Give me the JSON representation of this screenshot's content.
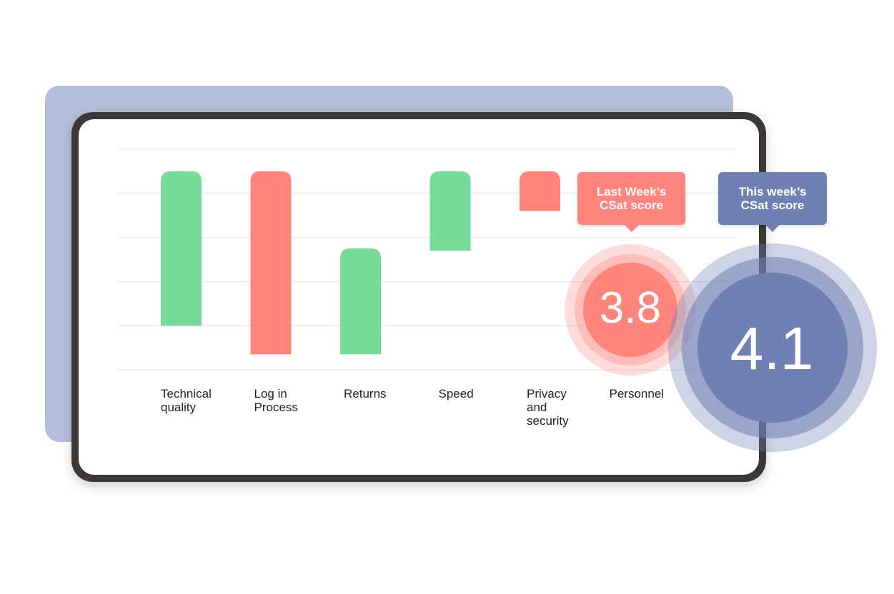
{
  "chart_data": {
    "type": "bar",
    "subtype": "floating",
    "categories": [
      "Technical\nquality",
      "Log in\nProcess",
      "Returns",
      "Speed",
      "Privacy\nand\nsecurity",
      "Personnel"
    ],
    "ranges": [
      {
        "category": "Technical quality",
        "low": 1,
        "high": 4.5,
        "color": "#77dc99"
      },
      {
        "category": "Log in Process",
        "low": 0.35,
        "high": 4.5,
        "color": "#ff847c"
      },
      {
        "category": "Returns",
        "low": 0.35,
        "high": 2.75,
        "color": "#77dc99"
      },
      {
        "category": "Speed",
        "low": 2.7,
        "high": 4.5,
        "color": "#77dc99"
      },
      {
        "category": "Privacy and security",
        "low": 3.6,
        "high": 4.5,
        "color": "#ff847c"
      }
    ],
    "ylim": [
      0,
      5
    ],
    "grid": true
  },
  "callouts": {
    "last_week": {
      "label": "Last Week’s\nCSat score",
      "value": "3.8",
      "color": "#ff847c"
    },
    "this_week": {
      "label": "This week’s\nCSat score",
      "value": "4.1",
      "color": "#6e80b4"
    }
  },
  "colors": {
    "positive": "#77dc99",
    "negative": "#ff847c",
    "accent": "#6e80b4",
    "backdrop": "#b3bfda"
  }
}
